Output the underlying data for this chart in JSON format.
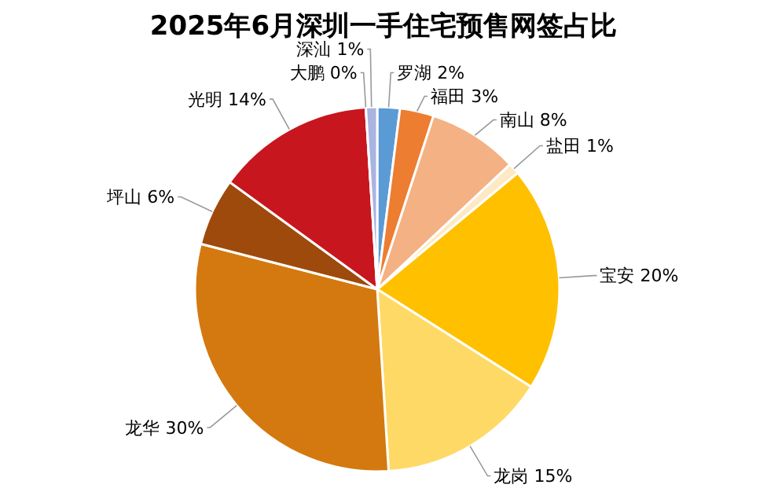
{
  "chart_data": {
    "type": "pie",
    "title": "2025年6月深圳一手住宅预售网签占比",
    "categories": [
      "罗湖",
      "福田",
      "南山",
      "盐田",
      "宝安",
      "龙岗",
      "龙华",
      "坪山",
      "光明",
      "大鹏",
      "深汕"
    ],
    "values": [
      2,
      3,
      8,
      1,
      20,
      15,
      30,
      6,
      14,
      0,
      1
    ],
    "colors": [
      "#5b9bd5",
      "#ed7d31",
      "#f4b183",
      "#fde9c4",
      "#ffc000",
      "#ffd966",
      "#d4790f",
      "#9e4a0d",
      "#c8161e",
      "#ffffff",
      "#a9b4e0"
    ],
    "value_labels": [
      "2%",
      "3%",
      "8%",
      "1%",
      "20%",
      "15%",
      "30%",
      "6%",
      "14%",
      "0%",
      "1%"
    ]
  }
}
